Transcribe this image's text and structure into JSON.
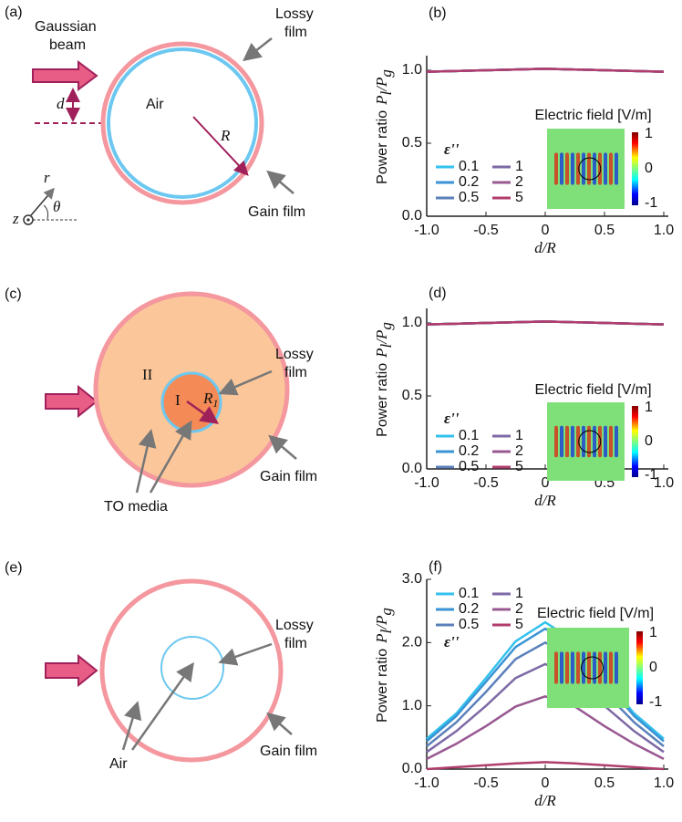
{
  "diagrams": {
    "a": {
      "label": "(a)",
      "beam": [
        "Gaussian",
        "beam"
      ],
      "lossy": [
        "Lossy",
        "film"
      ],
      "air": "Air",
      "d": "d",
      "R": "R",
      "r": "r",
      "theta": "θ",
      "z": "z",
      "gain": "Gain film"
    },
    "c": {
      "label": "(c)",
      "region2": "II",
      "region1": "I",
      "R1": "R",
      "R1_sub": "1",
      "lossy": [
        "Lossy",
        "film"
      ],
      "gain": "Gain film",
      "to": "TO media"
    },
    "e": {
      "label": "(e)",
      "lossy": [
        "Lossy",
        "film"
      ],
      "air": "Air",
      "gain": "Gain film"
    }
  },
  "chart_data": [
    {
      "type": "line",
      "label": "(b)",
      "ylabel": "Power ratio",
      "ylabel_math": [
        "P",
        "l",
        "/P",
        "g"
      ],
      "xlabel": "d/R",
      "legend_title": "ε''",
      "inset": {
        "title": "Electric field [V/m]",
        "colorbar_ticks": [
          1,
          0,
          -1
        ]
      },
      "xlim": [
        -1,
        1
      ],
      "ylim": [
        0,
        1.1
      ],
      "xticks": [
        {
          "value": -1,
          "label": "-1.0"
        },
        -0.5,
        0,
        0.5,
        {
          "value": 1,
          "label": "1.0"
        }
      ],
      "yticks": [
        {
          "value": 0,
          "label": "0.0"
        },
        0.5,
        {
          "value": 1,
          "label": "1.0"
        }
      ],
      "x": [
        -1,
        -0.5,
        0,
        0.5,
        1
      ],
      "series": [
        {
          "name": "0.1",
          "color": "#33c1ee",
          "values": [
            0.99,
            1.0,
            1.01,
            1.0,
            0.99
          ]
        },
        {
          "name": "0.2",
          "color": "#3a93d4",
          "values": [
            0.99,
            1.0,
            1.01,
            1.0,
            0.99
          ]
        },
        {
          "name": "0.5",
          "color": "#5b80ba",
          "values": [
            0.99,
            1.0,
            1.01,
            1.0,
            0.99
          ]
        },
        {
          "name": "1",
          "color": "#7d6aa6",
          "values": [
            0.99,
            1.0,
            1.01,
            1.0,
            0.99
          ]
        },
        {
          "name": "2",
          "color": "#985891",
          "values": [
            0.99,
            1.0,
            1.01,
            1.0,
            0.99
          ]
        },
        {
          "name": "5",
          "color": "#b03d6c",
          "values": [
            0.99,
            1.0,
            1.01,
            1.0,
            0.99
          ]
        }
      ]
    },
    {
      "type": "line",
      "label": "(d)",
      "ylabel": "Power ratio",
      "ylabel_math": [
        "P",
        "l",
        "/P",
        "g"
      ],
      "xlabel": "d/R",
      "legend_title": "ε''",
      "inset": {
        "title": "Electric field [V/m]",
        "colorbar_ticks": [
          1,
          0,
          -1
        ]
      },
      "xlim": [
        -1,
        1
      ],
      "ylim": [
        0,
        1.1
      ],
      "xticks": [
        {
          "value": -1,
          "label": "-1.0"
        },
        -0.5,
        0,
        0.5,
        {
          "value": 1,
          "label": "1.0"
        }
      ],
      "yticks": [
        {
          "value": 0,
          "label": "0.0"
        },
        0.5,
        {
          "value": 1,
          "label": "1.0"
        }
      ],
      "x": [
        -1,
        -0.5,
        0,
        0.5,
        1
      ],
      "series": [
        {
          "name": "0.1",
          "color": "#33c1ee",
          "values": [
            0.99,
            1.0,
            1.01,
            1.0,
            0.99
          ]
        },
        {
          "name": "0.2",
          "color": "#3a93d4",
          "values": [
            0.99,
            1.0,
            1.01,
            1.0,
            0.99
          ]
        },
        {
          "name": "0.5",
          "color": "#5b80ba",
          "values": [
            0.99,
            1.0,
            1.01,
            1.0,
            0.99
          ]
        },
        {
          "name": "1",
          "color": "#7d6aa6",
          "values": [
            0.99,
            1.0,
            1.01,
            1.0,
            0.99
          ]
        },
        {
          "name": "2",
          "color": "#985891",
          "values": [
            0.99,
            1.0,
            1.01,
            1.0,
            0.99
          ]
        },
        {
          "name": "5",
          "color": "#b03d6c",
          "values": [
            0.99,
            1.0,
            1.01,
            1.0,
            0.99
          ]
        }
      ]
    },
    {
      "type": "line",
      "label": "(f)",
      "ylabel": "Power ratio",
      "ylabel_math": [
        "P",
        "l",
        "/P",
        "g"
      ],
      "xlabel": "d/R",
      "legend_title": "ε''",
      "inset": {
        "title": "Electric field [V/m]",
        "colorbar_ticks": [
          1,
          0,
          -1
        ]
      },
      "xlim": [
        -1,
        1
      ],
      "ylim": [
        0,
        3
      ],
      "xticks": [
        {
          "value": -1,
          "label": "-1.0"
        },
        -0.5,
        0,
        0.5,
        {
          "value": 1,
          "label": "1.0"
        }
      ],
      "yticks": [
        {
          "value": 0,
          "label": "0.0"
        },
        {
          "value": 1,
          "label": "1.0"
        },
        {
          "value": 2,
          "label": "2.0"
        },
        {
          "value": 3,
          "label": "3.0"
        }
      ],
      "x": [
        -1,
        -0.75,
        -0.5,
        -0.25,
        0,
        0.25,
        0.5,
        0.75,
        1
      ],
      "series": [
        {
          "name": "0.1",
          "color": "#33c1ee",
          "values": [
            0.48,
            0.88,
            1.44,
            2.02,
            2.32,
            2.02,
            1.44,
            0.88,
            0.48
          ]
        },
        {
          "name": "0.2",
          "color": "#3a93d4",
          "values": [
            0.44,
            0.84,
            1.38,
            1.93,
            2.22,
            1.93,
            1.38,
            0.84,
            0.44
          ]
        },
        {
          "name": "0.5",
          "color": "#5b80ba",
          "values": [
            0.36,
            0.74,
            1.22,
            1.74,
            2.0,
            1.74,
            1.22,
            0.74,
            0.36
          ]
        },
        {
          "name": "1",
          "color": "#7d6aa6",
          "values": [
            0.27,
            0.6,
            1.0,
            1.44,
            1.66,
            1.44,
            1.0,
            0.6,
            0.27
          ]
        },
        {
          "name": "2",
          "color": "#985891",
          "values": [
            0.16,
            0.4,
            0.68,
            0.99,
            1.15,
            0.99,
            0.68,
            0.4,
            0.16
          ]
        },
        {
          "name": "5",
          "color": "#b03d6c",
          "values": [
            0.0,
            0.03,
            0.06,
            0.09,
            0.11,
            0.09,
            0.06,
            0.03,
            0.0
          ]
        }
      ]
    }
  ]
}
